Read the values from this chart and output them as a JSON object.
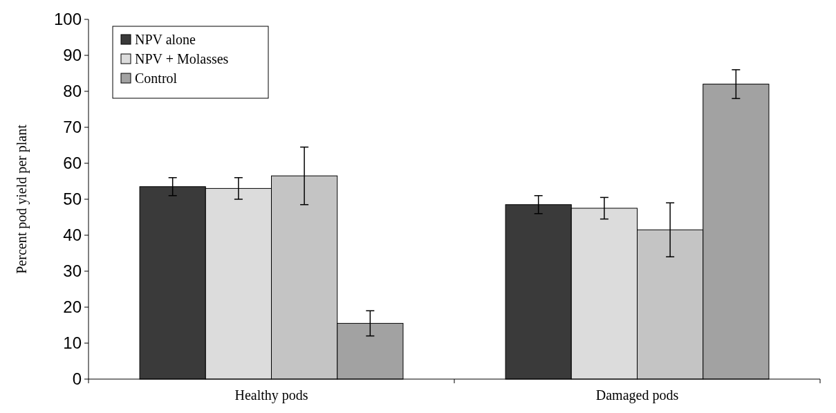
{
  "chart_data": {
    "type": "bar",
    "ylabel": "Percent pod yield per plant",
    "categories": [
      "Healthy pods",
      "Damaged pods"
    ],
    "series": [
      {
        "name": "NPV alone",
        "color": "#3a3a3a",
        "values": [
          53.5,
          48.5
        ],
        "errors": [
          2.5,
          2.5
        ]
      },
      {
        "name": "NPV + Molasses",
        "color": "#dcdcdc",
        "values": [
          53,
          47.5
        ],
        "errors": [
          3,
          3
        ]
      },
      {
        "color": "#c4c4c4",
        "values": [
          56.5,
          41.5
        ],
        "errors": [
          8,
          7.5
        ]
      },
      {
        "name": "Control",
        "color": "#a2a2a2",
        "values": [
          15.5,
          82
        ],
        "errors": [
          3.5,
          4
        ]
      }
    ],
    "ylim": [
      0,
      100
    ],
    "yticks": [
      0,
      10,
      20,
      30,
      40,
      50,
      60,
      70,
      80,
      90,
      100
    ],
    "legend": "top left",
    "grid": false
  }
}
